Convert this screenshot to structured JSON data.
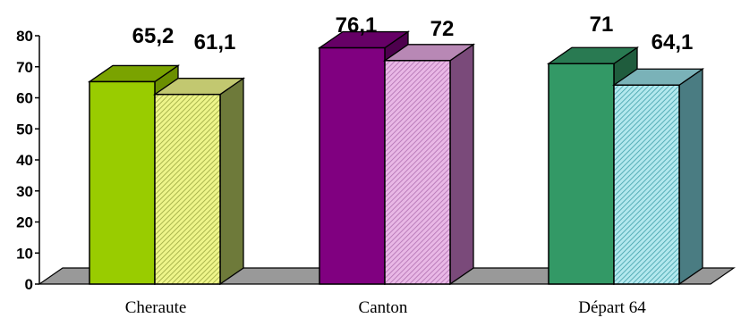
{
  "chart_data": {
    "type": "bar",
    "title": "",
    "xlabel": "",
    "ylabel": "",
    "categories": [
      "Cheraute",
      "Canton",
      "Départ 64"
    ],
    "series": [
      {
        "values": [
          65.2,
          76.1,
          71
        ]
      },
      {
        "values": [
          61.1,
          72,
          64.1
        ]
      }
    ],
    "data_labels": [
      [
        "65,2",
        "61,1"
      ],
      [
        "76,1",
        "72"
      ],
      [
        "71",
        "64,1"
      ]
    ],
    "y_ticks": [
      "0",
      "10",
      "20",
      "30",
      "40",
      "50",
      "60",
      "70",
      "80"
    ],
    "ylim": [
      0,
      80
    ],
    "grid": false,
    "legend": "none",
    "style": "3d-clustered",
    "colors": {
      "Cheraute": {
        "front": [
          "#99cc00",
          "#eef58a"
        ],
        "side": [
          "#6b8f00",
          "#6e7a3a"
        ],
        "top": [
          "#7aa300",
          "#c2c870"
        ],
        "hatch": "#9aa640"
      },
      "Canton": {
        "front": [
          "#800080",
          "#e9b8e6"
        ],
        "side": [
          "#4d004d",
          "#7a4a7a"
        ],
        "top": [
          "#660066",
          "#b888b5"
        ],
        "hatch": "#b070b0"
      },
      "Départ 64": {
        "front": [
          "#339966",
          "#b3e8ee"
        ],
        "side": [
          "#1f5c3d",
          "#4a7c82"
        ],
        "top": [
          "#297a52",
          "#7ab2b8"
        ],
        "hatch": "#40a0aa"
      },
      "floor": "#999999"
    }
  }
}
